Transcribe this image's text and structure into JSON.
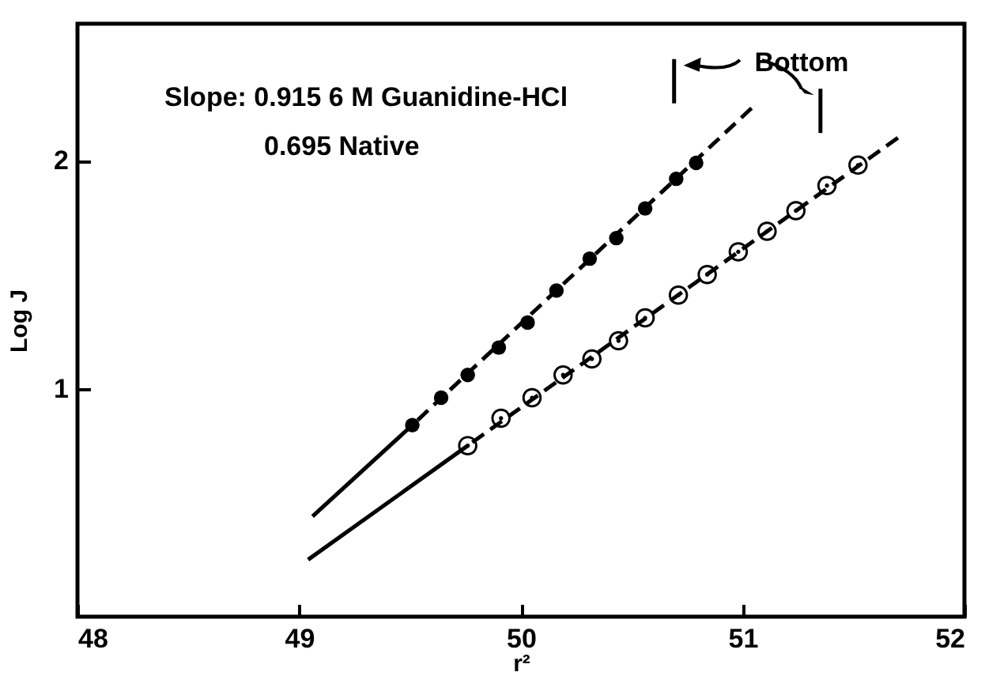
{
  "chart_data": {
    "type": "scatter",
    "xlabel": "r²",
    "ylabel": "Log J",
    "xlim": [
      48,
      52
    ],
    "ylim": [
      0,
      2.6
    ],
    "xticks": [
      48,
      49,
      50,
      51,
      52
    ],
    "yticks": [
      1,
      2
    ],
    "grid": false,
    "annotations": [
      "Slope: 0.915 6 M Guanidine-HCl",
      "0.695 Native",
      "Bottom"
    ],
    "series": [
      {
        "type": "line",
        "color": "#000000",
        "line_style": "solid",
        "x": [
          49.06,
          49.51
        ],
        "values": [
          0.44,
          0.84
        ]
      },
      {
        "type": "line",
        "color": "#000000",
        "line_style": "dashed",
        "x": [
          49.51,
          51.04
        ],
        "values": [
          0.84,
          2.23
        ]
      },
      {
        "color": "#000000",
        "marker": "circle",
        "x": [
          49.51,
          49.64,
          49.76,
          49.9,
          50.03,
          50.16,
          50.31,
          50.43,
          50.56,
          50.7,
          50.79
        ],
        "values": [
          0.84,
          0.96,
          1.06,
          1.18,
          1.29,
          1.43,
          1.57,
          1.66,
          1.79,
          1.92,
          1.99
        ]
      },
      {
        "type": "line",
        "color": "#000000",
        "line_style": "solid",
        "x": [
          49.04,
          49.76
        ],
        "values": [
          0.25,
          0.75
        ]
      },
      {
        "type": "line",
        "color": "#000000",
        "line_style": "dashed",
        "x": [
          49.76,
          51.7
        ],
        "values": [
          0.75,
          2.1
        ]
      },
      {
        "color": "#000000",
        "marker": "circle",
        "x": [
          49.76,
          49.91,
          50.05,
          50.19,
          50.32,
          50.44,
          50.56,
          50.71,
          50.84,
          50.98,
          51.11,
          51.24,
          51.38,
          51.52
        ],
        "values": [
          0.75,
          0.87,
          0.96,
          1.06,
          1.13,
          1.21,
          1.31,
          1.41,
          1.5,
          1.6,
          1.69,
          1.78,
          1.89,
          1.98
        ]
      }
    ]
  }
}
